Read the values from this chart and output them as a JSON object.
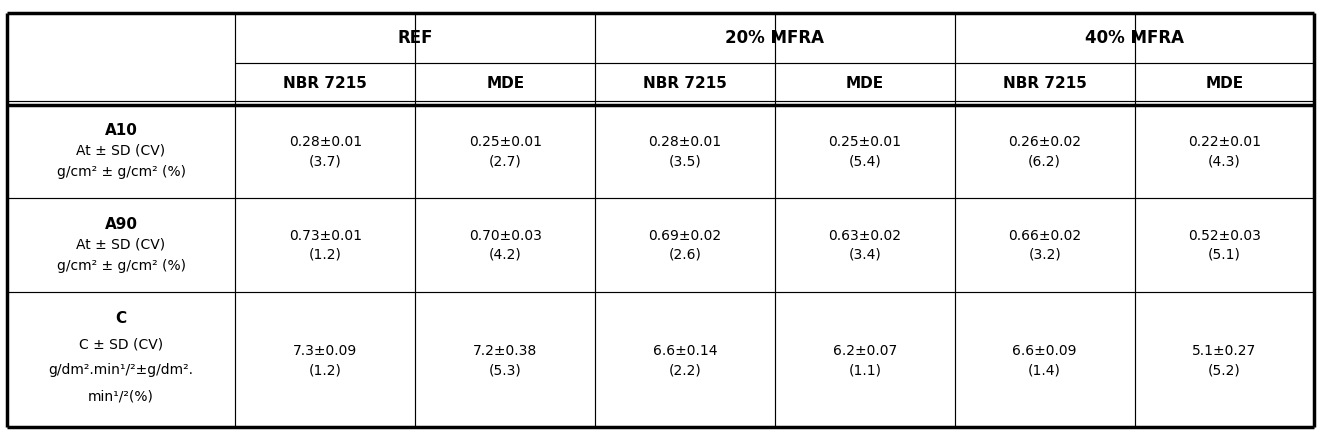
{
  "col_groups": [
    "REF",
    "20% MFRA",
    "40% MFRA"
  ],
  "col_subheaders": [
    "NBR 7215",
    "MDE",
    "NBR 7215",
    "MDE",
    "NBR 7215",
    "MDE"
  ],
  "row_headers_lines": [
    [
      "A10",
      "At ± SD (CV)",
      "g/cm² ± g/cm² (%)"
    ],
    [
      "A90",
      "At ± SD (CV)",
      "g/cm² ± g/cm² (%)"
    ],
    [
      "C",
      "C ± SD (CV)",
      "g/dm².min¹/²±g/dm².",
      "min¹/²(%)"
    ]
  ],
  "row_header_bold_line": [
    0,
    0,
    0
  ],
  "cell_data": [
    [
      "0.28±0.01\n(3.7)",
      "0.25±0.01\n(2.7)",
      "0.28±0.01\n(3.5)",
      "0.25±0.01\n(5.4)",
      "0.26±0.02\n(6.2)",
      "0.22±0.01\n(4.3)"
    ],
    [
      "0.73±0.01\n(1.2)",
      "0.70±0.03\n(4.2)",
      "0.69±0.02\n(2.6)",
      "0.63±0.02\n(3.4)",
      "0.66±0.02\n(3.2)",
      "0.52±0.03\n(5.1)"
    ],
    [
      "7.3±0.09\n(1.2)",
      "7.2±0.38\n(5.3)",
      "6.6±0.14\n(2.2)",
      "6.2±0.07\n(1.1)",
      "6.6±0.09\n(1.4)",
      "5.1±0.27\n(5.2)"
    ]
  ],
  "background_color": "#ffffff",
  "text_color": "#000000"
}
